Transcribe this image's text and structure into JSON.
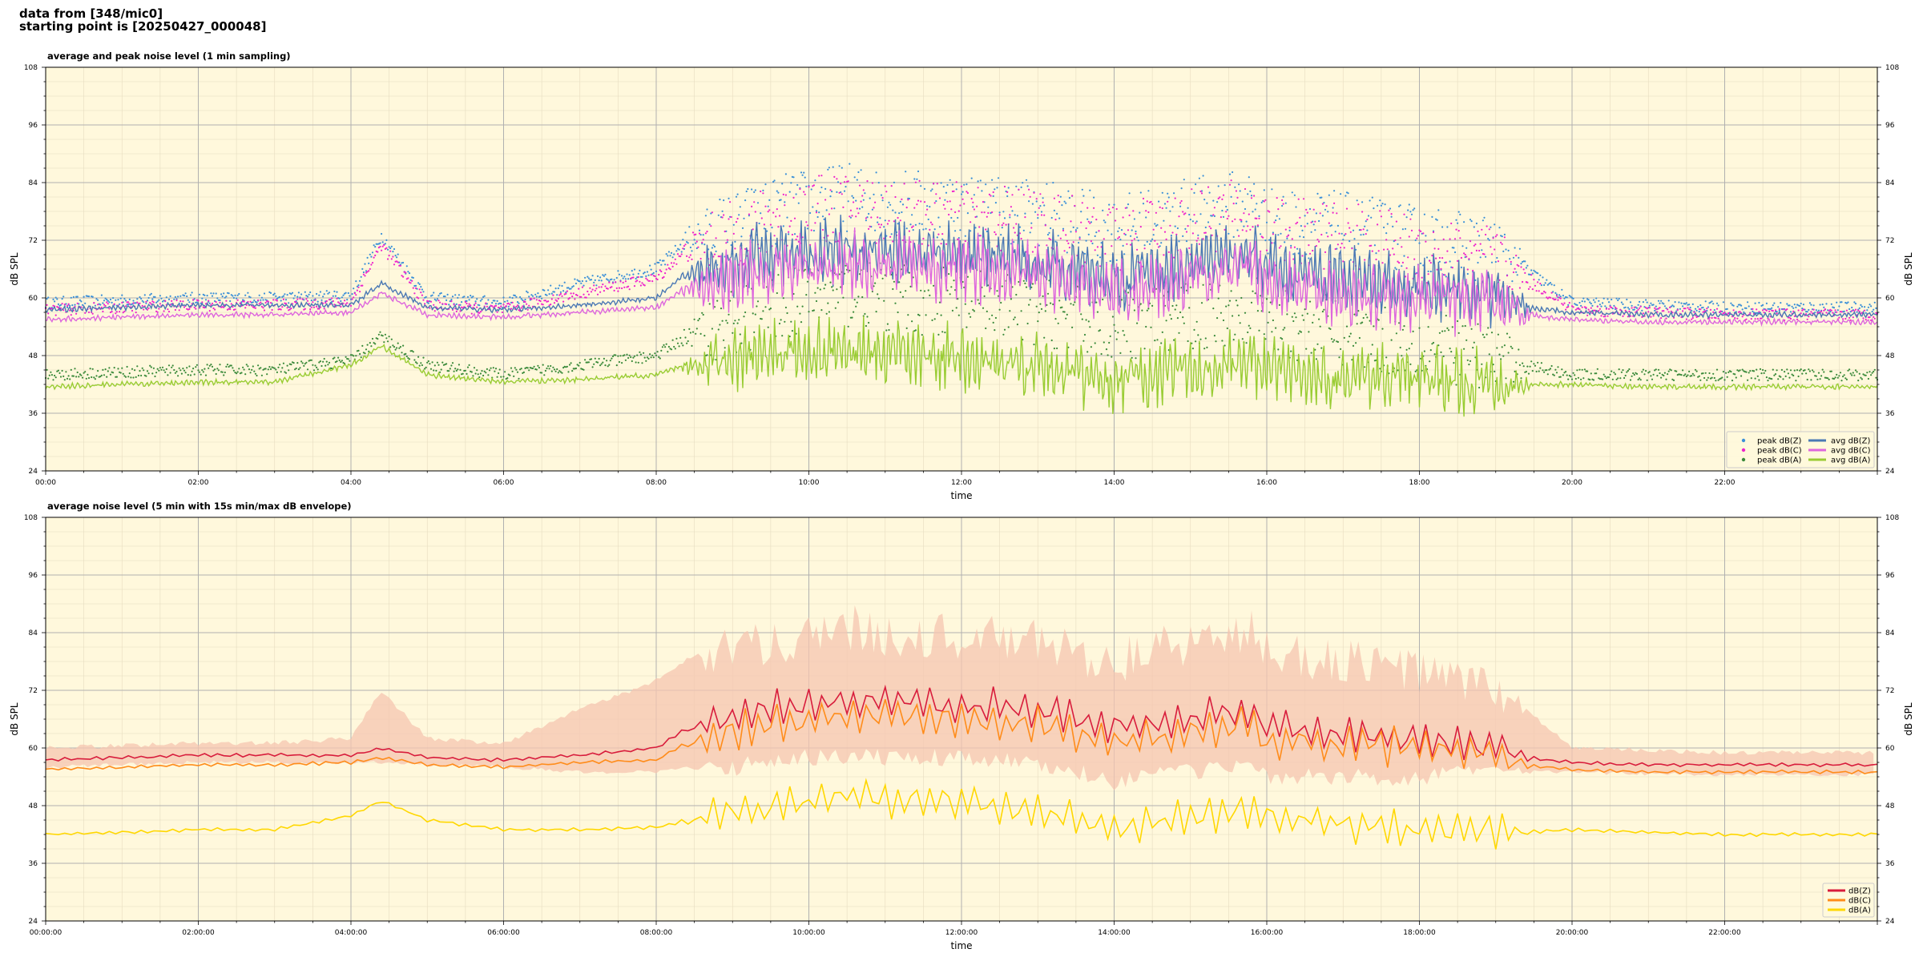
{
  "header": {
    "line1": "data from [348/mic0]",
    "line2": "starting point is [20250427_000048]"
  },
  "chart_data": [
    {
      "type": "line",
      "title": "average and peak noise level (1 min sampling)",
      "xlabel": "time",
      "ylabel": "dB SPL",
      "xlim_hours": [
        0,
        24
      ],
      "ylim": [
        24,
        108
      ],
      "yticks": [
        24,
        36,
        48,
        60,
        72,
        84,
        96,
        108
      ],
      "xtick_labels": [
        "00:00",
        "02:00",
        "04:00",
        "06:00",
        "08:00",
        "10:00",
        "12:00",
        "14:00",
        "16:00",
        "18:00",
        "20:00",
        "22:00"
      ],
      "grid": true,
      "legend": "lower-right",
      "x": [
        0,
        1,
        2,
        3,
        4,
        4.4,
        5,
        6,
        7,
        8,
        8.4,
        9,
        9.5,
        10,
        10.5,
        11,
        12,
        13,
        14,
        15,
        15.8,
        16,
        17,
        18,
        19,
        19.4,
        20,
        21,
        22,
        23,
        24
      ],
      "series": [
        {
          "name": "peak dB(Z)",
          "kind": "scatter",
          "color": "#3a8fd8",
          "values": [
            59,
            59.5,
            60,
            60,
            60.5,
            73,
            60,
            59,
            63,
            66,
            72,
            75,
            78,
            80,
            81,
            80,
            79,
            78,
            74,
            78,
            80,
            76,
            75,
            72,
            70,
            66,
            59,
            58.5,
            58,
            58,
            58
          ]
        },
        {
          "name": "peak dB(C)",
          "kind": "scatter",
          "color": "#ee22cc",
          "values": [
            57.5,
            58,
            58.5,
            58.5,
            59,
            71,
            58.5,
            57.5,
            61,
            64,
            70,
            73,
            76,
            78,
            79,
            78,
            77,
            76,
            72,
            76,
            78,
            74,
            73,
            70,
            68,
            64,
            57.5,
            57,
            56.5,
            56.5,
            56.5
          ]
        },
        {
          "name": "peak dB(A)",
          "kind": "scatter",
          "color": "#3a8a3a",
          "values": [
            44,
            44.5,
            45,
            45,
            47,
            52,
            46,
            44,
            46,
            48,
            52,
            55,
            58,
            60,
            61,
            60,
            59,
            57,
            54,
            56,
            58,
            55,
            53,
            50,
            48,
            46,
            44,
            44,
            44,
            44,
            44
          ]
        },
        {
          "name": "avg dB(Z)",
          "kind": "line",
          "color": "#4a78b4",
          "values": [
            57.5,
            58,
            58.5,
            58.5,
            58.5,
            63,
            58,
            57.5,
            58.5,
            60,
            65,
            67,
            69,
            69,
            70,
            70,
            69,
            68,
            64,
            67,
            69,
            66,
            64,
            62,
            61,
            58,
            57,
            56.5,
            56.5,
            56.5,
            56.5
          ]
        },
        {
          "name": "avg dB(C)",
          "kind": "line",
          "color": "#dd66dd",
          "values": [
            55.5,
            56,
            56.5,
            56.5,
            57,
            61,
            56.5,
            56,
            57,
            58,
            62,
            64,
            66,
            66,
            67,
            67,
            66,
            65,
            61,
            64,
            66,
            63,
            61,
            60,
            59,
            56.5,
            55.5,
            55,
            55,
            55,
            55
          ]
        },
        {
          "name": "avg dB(A)",
          "kind": "line",
          "color": "#99cc33",
          "values": [
            41.5,
            42,
            42.5,
            42.5,
            46,
            50,
            44,
            42.5,
            43,
            44,
            46,
            47,
            48,
            49,
            49,
            48,
            47.5,
            46,
            43,
            45,
            47,
            45,
            44,
            43,
            42.5,
            42,
            42,
            41.5,
            41.5,
            41.5,
            41.5
          ]
        }
      ]
    },
    {
      "type": "line",
      "title": "average noise level (5 min with 15s min/max dB envelope)",
      "xlabel": "time",
      "ylabel": "dB SPL",
      "xlim_hours": [
        0,
        24
      ],
      "ylim": [
        24,
        108
      ],
      "yticks": [
        24,
        36,
        48,
        60,
        72,
        84,
        96,
        108
      ],
      "xtick_labels": [
        "00:00:00",
        "02:00:00",
        "04:00:00",
        "06:00:00",
        "08:00:00",
        "10:00:00",
        "12:00:00",
        "14:00:00",
        "16:00:00",
        "18:00:00",
        "20:00:00",
        "22:00:00"
      ],
      "grid": true,
      "legend": "lower-right",
      "envelope_color": "#f5c5b0",
      "x": [
        0,
        1,
        2,
        3,
        4,
        4.4,
        5,
        6,
        7,
        8,
        8.4,
        9,
        9.5,
        10,
        10.5,
        11,
        12,
        13,
        14,
        15,
        15.8,
        16,
        17,
        18,
        19,
        19.4,
        20,
        21,
        22,
        23,
        24
      ],
      "envelope_max": [
        60,
        60.5,
        61,
        61,
        62,
        72,
        62,
        61,
        68,
        74,
        78,
        80,
        82,
        84,
        85,
        84,
        83,
        82,
        78,
        82,
        84,
        80,
        78,
        76,
        72,
        68,
        60,
        59.5,
        59,
        59,
        59
      ],
      "envelope_min": [
        56,
        56.5,
        57,
        57,
        57,
        57,
        56.5,
        56,
        55,
        55,
        56,
        56,
        57,
        58,
        58,
        58,
        58,
        57,
        53,
        55,
        56,
        54,
        54,
        54,
        55,
        55,
        55,
        54.5,
        54.5,
        54.5,
        54.5
      ],
      "series": [
        {
          "name": "dB(Z)",
          "color": "#d81c3c",
          "values": [
            57.5,
            58,
            58.5,
            58.5,
            58.5,
            60,
            58,
            57.5,
            58.5,
            60,
            64,
            66,
            68,
            69,
            69.5,
            70,
            69,
            68,
            64,
            66,
            68,
            65,
            63,
            62,
            60.5,
            58,
            57,
            56.5,
            56.5,
            56.5,
            56.5
          ]
        },
        {
          "name": "dB(C)",
          "color": "#ff8c1a",
          "values": [
            55.5,
            56,
            56.5,
            56.5,
            57,
            58,
            56.5,
            56,
            57,
            57.5,
            61,
            63,
            65,
            66,
            66.5,
            67,
            66,
            65,
            61,
            63,
            65,
            62,
            60.5,
            60,
            58.5,
            56.5,
            55.5,
            55,
            55,
            55,
            55
          ]
        },
        {
          "name": "dB(A)",
          "color": "#ffd700",
          "values": [
            42,
            42.5,
            43,
            43,
            46,
            49,
            45,
            43,
            43,
            43.5,
            45,
            46,
            47,
            49,
            50,
            49,
            48.5,
            47,
            44,
            45.5,
            47.5,
            45.5,
            44,
            43.5,
            43,
            42.5,
            43,
            42.5,
            42,
            42,
            42
          ]
        }
      ]
    }
  ]
}
